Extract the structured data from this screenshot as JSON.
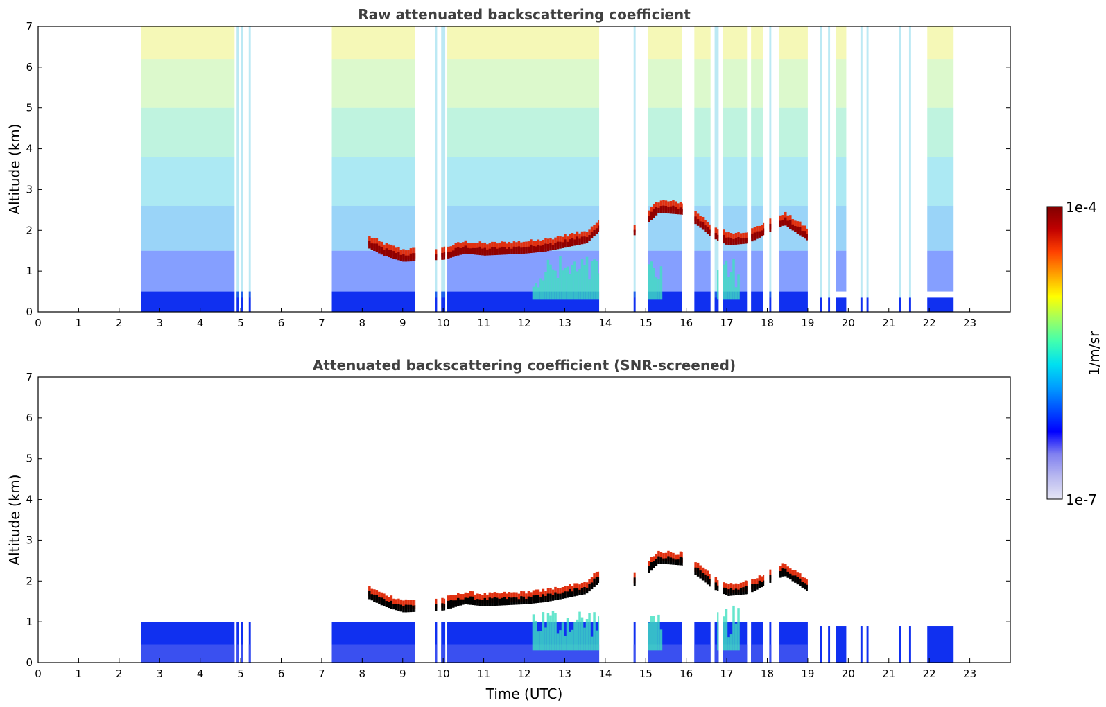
{
  "chart_data": [
    {
      "type": "heatmap",
      "title": "Raw attenuated backscattering coefficient",
      "xlabel": "",
      "ylabel": "Altitude (km)",
      "xlim": [
        0,
        24
      ],
      "ylim": [
        0,
        7
      ],
      "x_ticks": [
        "0",
        "1",
        "2",
        "3",
        "4",
        "5",
        "6",
        "7",
        "8",
        "9",
        "10",
        "11",
        "12",
        "13",
        "14",
        "15",
        "16",
        "17",
        "18",
        "19",
        "20",
        "21",
        "22",
        "23"
      ],
      "y_ticks": [
        "0",
        "1",
        "2",
        "3",
        "4",
        "5",
        "6",
        "7"
      ],
      "data_segments_hours": [
        [
          2.55,
          4.85
        ],
        [
          4.9,
          4.95
        ],
        [
          5.0,
          5.05
        ],
        [
          5.2,
          5.25
        ],
        [
          7.25,
          9.3
        ],
        [
          9.8,
          9.85
        ],
        [
          9.95,
          10.05
        ],
        [
          10.1,
          13.85
        ],
        [
          14.7,
          14.75
        ],
        [
          15.05,
          15.9
        ],
        [
          16.2,
          16.6
        ],
        [
          16.7,
          16.8
        ],
        [
          16.9,
          17.5
        ],
        [
          17.6,
          17.9
        ],
        [
          18.05,
          18.1
        ],
        [
          18.3,
          19.0
        ],
        [
          19.3,
          19.35
        ],
        [
          19.5,
          19.55
        ],
        [
          19.7,
          19.95
        ],
        [
          20.3,
          20.35
        ],
        [
          20.45,
          20.5
        ],
        [
          21.25,
          21.3
        ],
        [
          21.5,
          21.55
        ],
        [
          21.95,
          22.6
        ]
      ],
      "cloud_layer": [
        {
          "t": 8.1,
          "z": 1.7
        },
        {
          "t": 8.5,
          "z": 1.5
        },
        {
          "t": 9.0,
          "z": 1.35
        },
        {
          "t": 10.0,
          "z": 1.4
        },
        {
          "t": 10.5,
          "z": 1.55
        },
        {
          "t": 11.0,
          "z": 1.5
        },
        {
          "t": 12.0,
          "z": 1.55
        },
        {
          "t": 12.5,
          "z": 1.6
        },
        {
          "t": 13.0,
          "z": 1.7
        },
        {
          "t": 13.5,
          "z": 1.8
        },
        {
          "t": 13.85,
          "z": 2.1
        },
        {
          "t": 14.7,
          "z": 2.0
        },
        {
          "t": 15.3,
          "z": 2.55
        },
        {
          "t": 15.9,
          "z": 2.5
        },
        {
          "t": 16.3,
          "z": 2.2
        },
        {
          "t": 16.6,
          "z": 1.95
        },
        {
          "t": 17.0,
          "z": 1.75
        },
        {
          "t": 17.5,
          "z": 1.8
        },
        {
          "t": 18.4,
          "z": 2.25
        },
        {
          "t": 19.0,
          "z": 1.85
        }
      ]
    },
    {
      "type": "heatmap",
      "title": "Attenuated backscattering coefficient (SNR-screened)",
      "xlabel": "Time (UTC)",
      "ylabel": "Altitude (km)",
      "xlim": [
        0,
        24
      ],
      "ylim": [
        0,
        7
      ],
      "x_ticks": [
        "0",
        "1",
        "2",
        "3",
        "4",
        "5",
        "6",
        "7",
        "8",
        "9",
        "10",
        "11",
        "12",
        "13",
        "14",
        "15",
        "16",
        "17",
        "18",
        "19",
        "20",
        "21",
        "22",
        "23"
      ],
      "y_ticks": [
        "0",
        "1",
        "2",
        "3",
        "4",
        "5",
        "6",
        "7"
      ]
    }
  ],
  "colorbar": {
    "label": "1/m/sr",
    "max_label": "1e-4",
    "min_label": "1e-7",
    "colors": [
      "#e6e6f5",
      "#b8b8f0",
      "#8080f0",
      "#0000ff",
      "#0050ff",
      "#00a0ff",
      "#00e0f0",
      "#40ffb0",
      "#a0ff60",
      "#ffff00",
      "#ffa000",
      "#ff4000",
      "#c00000",
      "#800000"
    ]
  }
}
